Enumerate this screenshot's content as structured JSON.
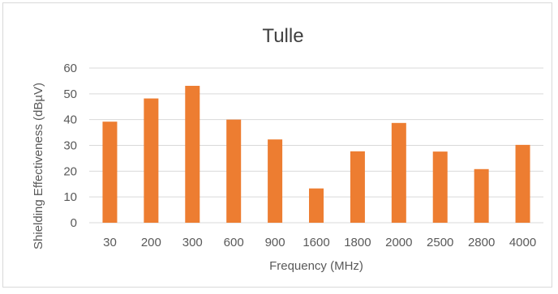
{
  "chart_data": {
    "type": "bar",
    "title": "Tulle",
    "xlabel": "Frequency (MHz)",
    "ylabel": "Shielding Effectiveness (dBµV)",
    "categories": [
      "30",
      "200",
      "300",
      "600",
      "900",
      "1600",
      "1800",
      "2000",
      "2500",
      "2800",
      "4000"
    ],
    "values": [
      39.2,
      48.2,
      53.1,
      40,
      32.3,
      13.3,
      27.7,
      38.7,
      27.6,
      20.8,
      30.2
    ],
    "ylim": [
      0,
      60
    ],
    "yticks": [
      0,
      10,
      20,
      30,
      40,
      50,
      60
    ],
    "grid": true,
    "legend": "none",
    "bar_color": "#ED7D31",
    "grid_color": "#d9d9d9"
  }
}
